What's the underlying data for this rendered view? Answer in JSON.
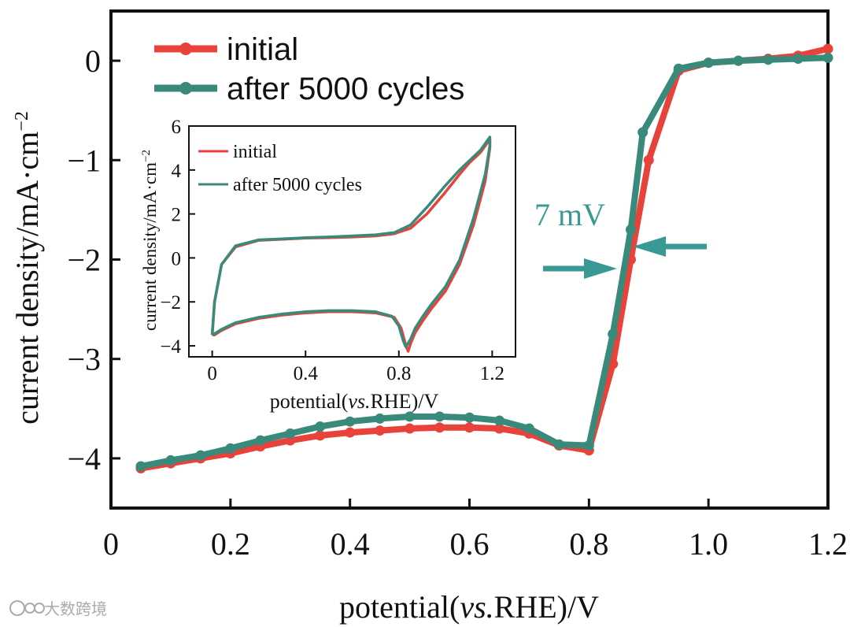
{
  "colors": {
    "initial": "#e8423a",
    "after": "#3a8a7c",
    "annotation": "#3a9a93",
    "axis": "#111111",
    "watermark": "#aaaaaa"
  },
  "watermark": {
    "text": "大数跨境",
    "icon": "logo-icon"
  },
  "chart_data": [
    {
      "type": "line",
      "title": "",
      "xlabel": "potential(vs.RHE)/V",
      "xlabel_parts": {
        "pre": "potential(",
        "italic": "vs.",
        "post": "RHE)/V"
      },
      "ylabel": "current density/mA·cm⁻²",
      "ylabel_parts": {
        "base": "current density/mA·cm",
        "sup": "−2"
      },
      "xlim": [
        0,
        1.2
      ],
      "ylim": [
        -4.5,
        0.5
      ],
      "xticks": [
        0,
        0.2,
        0.4,
        0.6,
        0.8,
        1.0,
        1.2
      ],
      "xtick_labels": [
        "0",
        "0.2",
        "0.4",
        "0.6",
        "0.8",
        "1.0",
        "1.2"
      ],
      "yticks": [
        0,
        -1,
        -2,
        -3,
        -4
      ],
      "ytick_labels": [
        "0",
        "−1",
        "−2",
        "−3",
        "−4"
      ],
      "grid": false,
      "legend": "top-left",
      "series": [
        {
          "name": "initial",
          "x": [
            0.05,
            0.1,
            0.15,
            0.2,
            0.25,
            0.3,
            0.35,
            0.4,
            0.45,
            0.5,
            0.55,
            0.6,
            0.65,
            0.7,
            0.75,
            0.8,
            0.84,
            0.87,
            0.9,
            0.95,
            1.0,
            1.05,
            1.1,
            1.15,
            1.2
          ],
          "y": [
            -4.1,
            -4.05,
            -4.0,
            -3.95,
            -3.88,
            -3.82,
            -3.77,
            -3.74,
            -3.72,
            -3.7,
            -3.69,
            -3.69,
            -3.7,
            -3.75,
            -3.87,
            -3.92,
            -3.05,
            -2.0,
            -1.0,
            -0.1,
            -0.02,
            0.0,
            0.02,
            0.05,
            0.12
          ]
        },
        {
          "name": "after 5000 cycles",
          "x": [
            0.05,
            0.1,
            0.15,
            0.2,
            0.25,
            0.3,
            0.35,
            0.4,
            0.45,
            0.5,
            0.55,
            0.6,
            0.65,
            0.7,
            0.75,
            0.8,
            0.84,
            0.87,
            0.89,
            0.95,
            1.0,
            1.05,
            1.1,
            1.15,
            1.2
          ],
          "y": [
            -4.08,
            -4.02,
            -3.97,
            -3.9,
            -3.82,
            -3.75,
            -3.68,
            -3.63,
            -3.6,
            -3.58,
            -3.58,
            -3.59,
            -3.62,
            -3.7,
            -3.86,
            -3.87,
            -2.75,
            -1.7,
            -0.72,
            -0.08,
            -0.02,
            0.0,
            0.01,
            0.02,
            0.03
          ]
        }
      ],
      "annotations": [
        {
          "text": "7 mV",
          "x": 0.855,
          "y": -1.5
        }
      ]
    },
    {
      "type": "line",
      "title": "",
      "xlabel": "potential(vs.RHE)/V",
      "xlabel_parts": {
        "pre": "potential(",
        "italic": "vs.",
        "post": "RHE)/V"
      },
      "ylabel": "current density/mA·cm⁻²",
      "ylabel_parts": {
        "base": "current density/mA·cm",
        "sup": "−2"
      },
      "xlim": [
        -0.1,
        1.3
      ],
      "ylim": [
        -4.5,
        6
      ],
      "xticks": [
        0,
        0.4,
        0.8,
        1.2
      ],
      "xtick_labels": [
        "0",
        "0.4",
        "0.8",
        "1.2"
      ],
      "yticks": [
        6,
        4,
        2,
        0,
        -2,
        -4
      ],
      "ytick_labels": [
        "6",
        "4",
        "2",
        "0",
        "−2",
        "−4"
      ],
      "grid": false,
      "legend": "top-left",
      "series": [
        {
          "name": "initial",
          "x": [
            0.0,
            0.01,
            0.04,
            0.1,
            0.2,
            0.3,
            0.4,
            0.5,
            0.6,
            0.7,
            0.78,
            0.85,
            0.92,
            1.0,
            1.06,
            1.1,
            1.15,
            1.19,
            1.19,
            1.17,
            1.12,
            1.06,
            1.0,
            0.94,
            0.9,
            0.87,
            0.85,
            0.84,
            0.83,
            0.81,
            0.78,
            0.7,
            0.6,
            0.5,
            0.4,
            0.3,
            0.2,
            0.1,
            0.04,
            0.01,
            0.0
          ],
          "y": [
            -3.5,
            -2.0,
            -0.3,
            0.5,
            0.8,
            0.85,
            0.9,
            0.92,
            0.95,
            1.0,
            1.1,
            1.35,
            2.0,
            3.0,
            3.8,
            4.3,
            4.8,
            5.4,
            5.0,
            3.5,
            1.5,
            -0.3,
            -1.5,
            -2.3,
            -2.9,
            -3.4,
            -3.9,
            -4.25,
            -4.0,
            -3.2,
            -2.7,
            -2.5,
            -2.45,
            -2.45,
            -2.5,
            -2.6,
            -2.75,
            -3.0,
            -3.3,
            -3.5,
            -3.5
          ]
        },
        {
          "name": "after 5000 cycles",
          "x": [
            0.0,
            0.01,
            0.04,
            0.1,
            0.2,
            0.3,
            0.4,
            0.5,
            0.6,
            0.7,
            0.78,
            0.85,
            0.92,
            1.0,
            1.06,
            1.1,
            1.15,
            1.19,
            1.19,
            1.17,
            1.12,
            1.06,
            1.0,
            0.94,
            0.9,
            0.87,
            0.85,
            0.83,
            0.82,
            0.8,
            0.77,
            0.7,
            0.6,
            0.5,
            0.4,
            0.3,
            0.2,
            0.1,
            0.04,
            0.01,
            0.0
          ],
          "y": [
            -3.5,
            -2.0,
            -0.3,
            0.55,
            0.82,
            0.87,
            0.92,
            0.95,
            1.0,
            1.05,
            1.15,
            1.5,
            2.3,
            3.3,
            4.0,
            4.4,
            4.9,
            5.5,
            5.1,
            3.8,
            1.8,
            -0.1,
            -1.3,
            -2.1,
            -2.7,
            -3.2,
            -3.7,
            -4.05,
            -3.8,
            -3.1,
            -2.65,
            -2.45,
            -2.4,
            -2.4,
            -2.45,
            -2.55,
            -2.7,
            -2.95,
            -3.25,
            -3.45,
            -3.5
          ]
        }
      ]
    }
  ]
}
